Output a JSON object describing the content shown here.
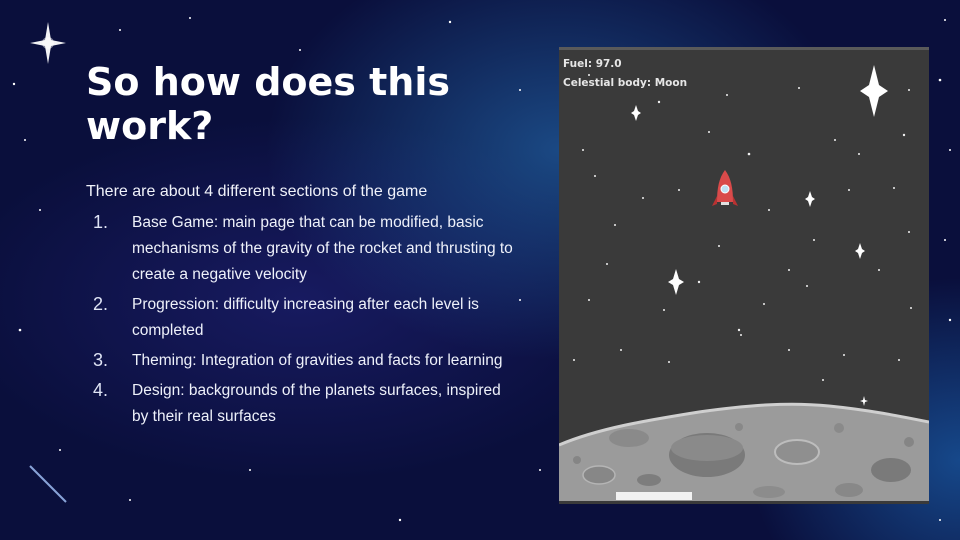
{
  "slide": {
    "title": "So how does this work?",
    "intro": "There are about 4 different sections of the game",
    "steps": [
      {
        "num": "1.",
        "text": "Base Game: main page that can be modified, basic mechanisms of the gravity of the rocket and thrusting to create a negative velocity"
      },
      {
        "num": "2.",
        "text": "Progression: difficulty increasing after each level is completed"
      },
      {
        "num": "3.",
        "text": "Theming: Integration of gravities and facts for learning"
      },
      {
        "num": "4.",
        "text": "Design: backgrounds of the planets surfaces, inspired by their real surfaces"
      }
    ]
  },
  "game": {
    "fuel_label": "Fuel: 97.0",
    "body_label": "Celestial body: Moon",
    "icons": [
      "rocket-icon",
      "sparkle-star-icon",
      "moon-surface",
      "fuel-bar"
    ],
    "colors": {
      "sky": "#3a3a3a",
      "rocket": "#d94a4a",
      "moon": "#9a9a9a",
      "fuel_bar": "#f2f2f2"
    }
  }
}
